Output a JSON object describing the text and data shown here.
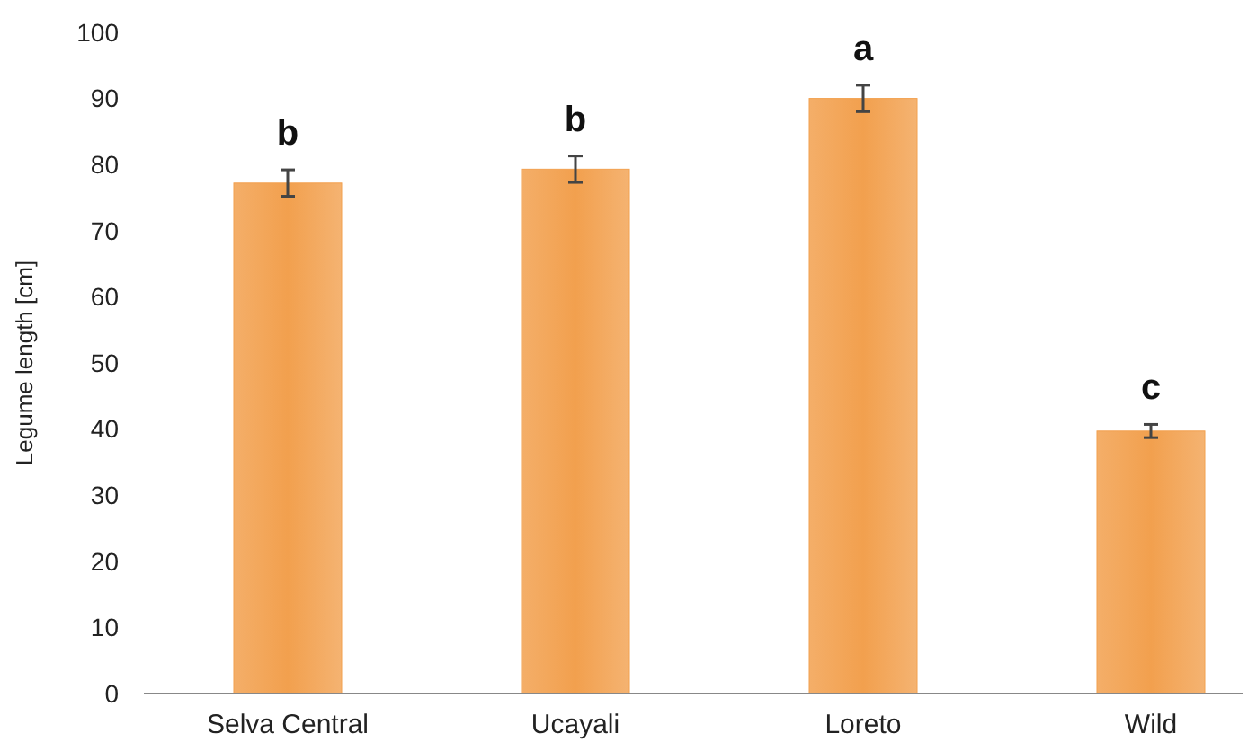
{
  "chart_data": {
    "type": "bar",
    "ylabel": "Legume length [cm]",
    "categories": [
      "Selva Central",
      "Ucayali",
      "Loreto",
      "Wild"
    ],
    "values": [
      77.2,
      79.3,
      90,
      39.7
    ],
    "errors": [
      2,
      2,
      2,
      1
    ],
    "color": "#f2a04e",
    "ylim": [
      0,
      100
    ],
    "yticks": [
      0,
      10,
      20,
      30,
      40,
      50,
      60,
      70,
      80,
      90,
      100
    ],
    "grid": false,
    "annotations": [
      "b",
      "b",
      "a",
      "c"
    ]
  }
}
